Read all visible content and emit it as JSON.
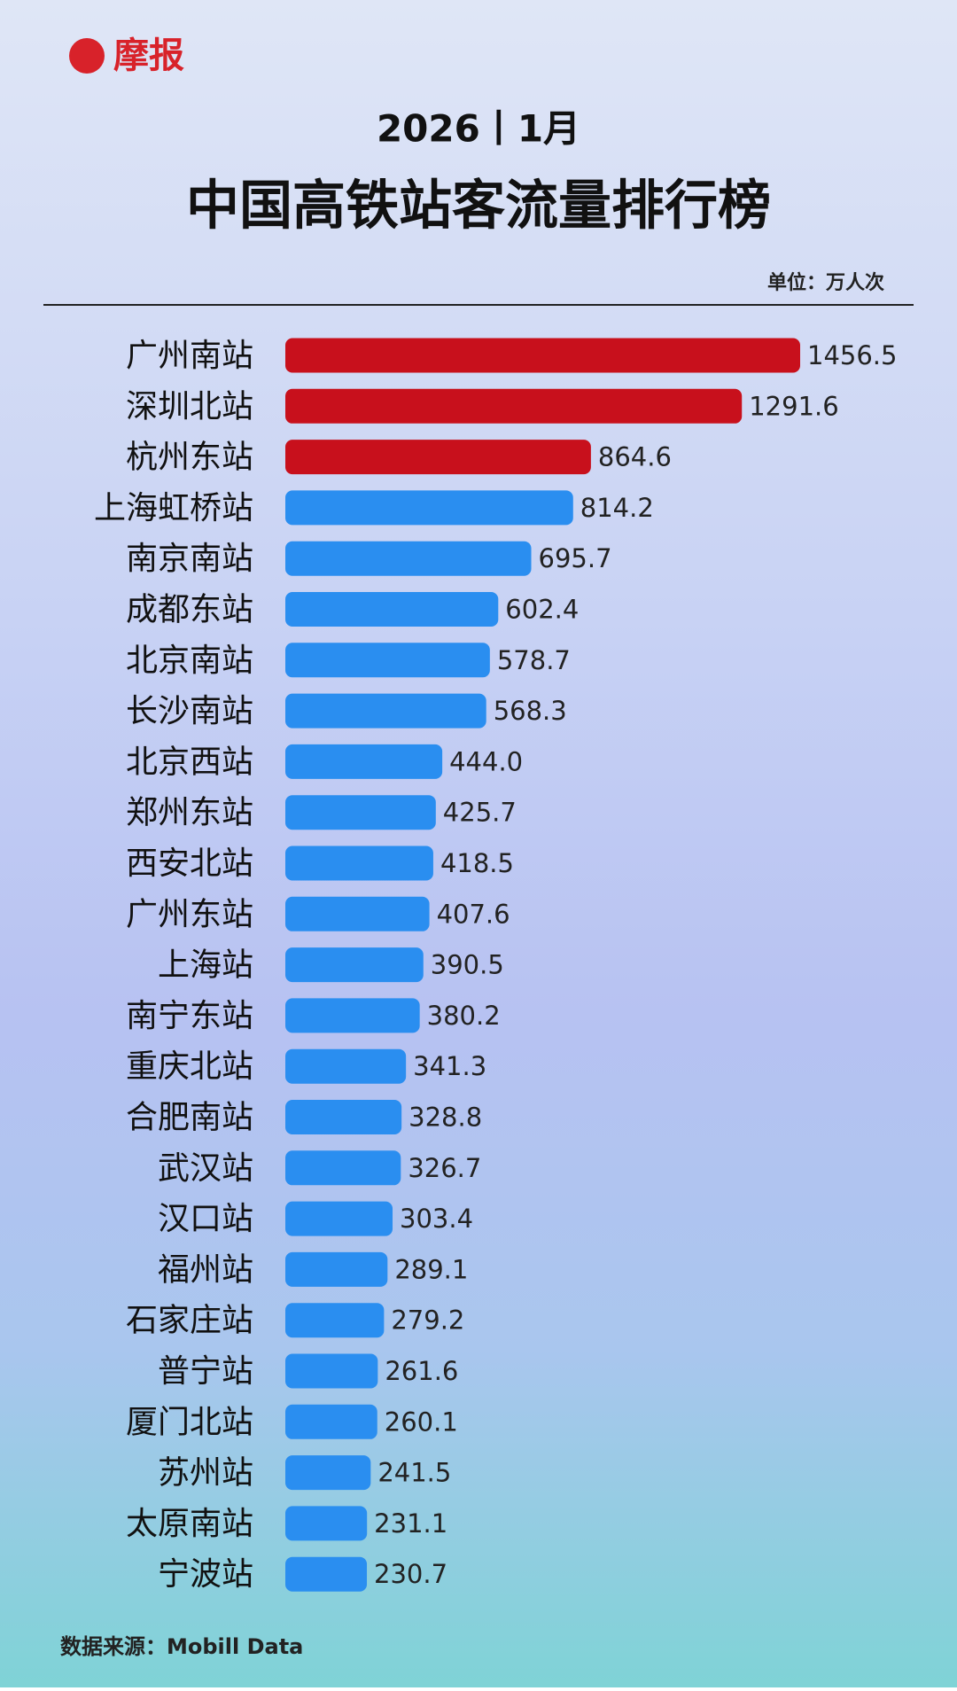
{
  "logo": "摩报",
  "chart_data": {
    "type": "hbar",
    "period": "2026丨1月",
    "title": "中国高铁站客流量排行榜",
    "unit": "单位：万人次",
    "source": "数据来源：Mobill Data",
    "categories": [
      "广州南站",
      "深圳北站",
      "杭州东站",
      "上海虹桥站",
      "南京南站",
      "成都东站",
      "北京南站",
      "长沙南站",
      "北京西站",
      "郑州东站",
      "西安北站",
      "广州东站",
      "上海站",
      "南宁东站",
      "重庆北站",
      "合肥南站",
      "武汉站",
      "汉口站",
      "福州站",
      "石家庄站",
      "普宁站",
      "厦门北站",
      "苏州站",
      "太原南站",
      "宁波站"
    ],
    "values": [
      1456.5,
      1291.6,
      864.6,
      814.2,
      695.7,
      602.4,
      578.7,
      568.3,
      444.0,
      425.7,
      418.5,
      407.6,
      390.5,
      380.2,
      341.3,
      328.8,
      326.7,
      303.4,
      289.1,
      279.2,
      261.6,
      260.1,
      241.5,
      231.1,
      230.7
    ],
    "value_labels": [
      "1456.5",
      "1291.6",
      "864.6",
      "814.2",
      "695.7",
      "602.4",
      "578.7",
      "568.3",
      "444.0",
      "425.7",
      "418.5",
      "407.6",
      "390.5",
      "380.2",
      "341.3",
      "328.8",
      "326.7",
      "303.4",
      "289.1",
      "279.2",
      "261.6",
      "260.1",
      "241.5",
      "231.1",
      "230.7"
    ],
    "colors": [
      "#c8101c",
      "#c8101c",
      "#c8101c",
      "#2a8ef0",
      "#2a8ef0",
      "#2a8ef0",
      "#2a8ef0",
      "#2a8ef0",
      "#2a8ef0",
      "#2a8ef0",
      "#2a8ef0",
      "#2a8ef0",
      "#2a8ef0",
      "#2a8ef0",
      "#2a8ef0",
      "#2a8ef0",
      "#2a8ef0",
      "#2a8ef0",
      "#2a8ef0",
      "#2a8ef0",
      "#2a8ef0",
      "#2a8ef0",
      "#2a8ef0",
      "#2a8ef0",
      "#2a8ef0"
    ]
  }
}
